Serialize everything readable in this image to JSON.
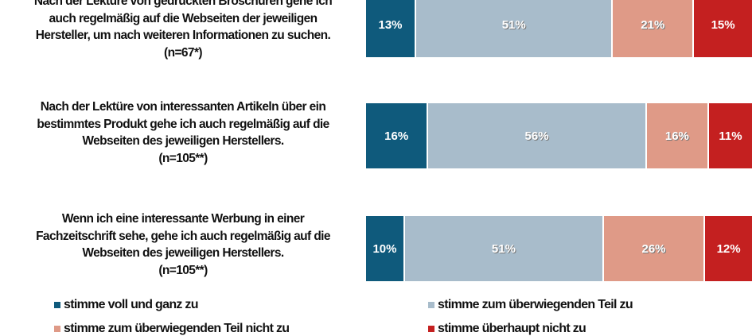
{
  "chart_data": {
    "type": "bar",
    "orientation": "horizontal-stacked-100",
    "categories": [
      {
        "lines": [
          "Nach der Lektüre von gedruckten Broschüren gehe ich",
          "auch regelmäßig auf die Webseiten der jeweiligen",
          "Hersteller, um nach weiteren Informationen zu suchen.",
          "(n=67*)"
        ]
      },
      {
        "lines": [
          "Nach der Lektüre von interessanten Artikeln über ein",
          "bestimmtes Produkt gehe ich auch regelmäßig auf die",
          "Webseiten des jeweiligen Herstellers.",
          "(n=105**)"
        ]
      },
      {
        "lines": [
          "Wenn ich eine interessante Werbung in einer",
          "Fachzeitschrift sehe, gehe ich auch regelmäßig auf die",
          "Webseiten des jeweiligen Herstellers.",
          "(n=105**)"
        ]
      }
    ],
    "series": [
      {
        "name": "stimme voll und ganz zu",
        "color": "#0f5a7c",
        "values": [
          13,
          16,
          10
        ],
        "labels": [
          "13%",
          "16%",
          "10%"
        ]
      },
      {
        "name": "stimme zum überwiegenden Teil zu",
        "color": "#a8bccb",
        "values": [
          51,
          56,
          51
        ],
        "labels": [
          "51%",
          "56%",
          "51%"
        ]
      },
      {
        "name": "stimme zum überwiegenden Teil nicht zu",
        "color": "#df9a87",
        "values": [
          21,
          16,
          26
        ],
        "labels": [
          "21%",
          "16%",
          "26%"
        ]
      },
      {
        "name": "stimme überhaupt nicht zu",
        "color": "#c42020",
        "values": [
          15,
          11,
          12
        ],
        "labels": [
          "15%",
          "11%",
          "12%"
        ]
      }
    ],
    "xlim": [
      0,
      100
    ],
    "grid": false,
    "legend_placement": "bottom"
  }
}
